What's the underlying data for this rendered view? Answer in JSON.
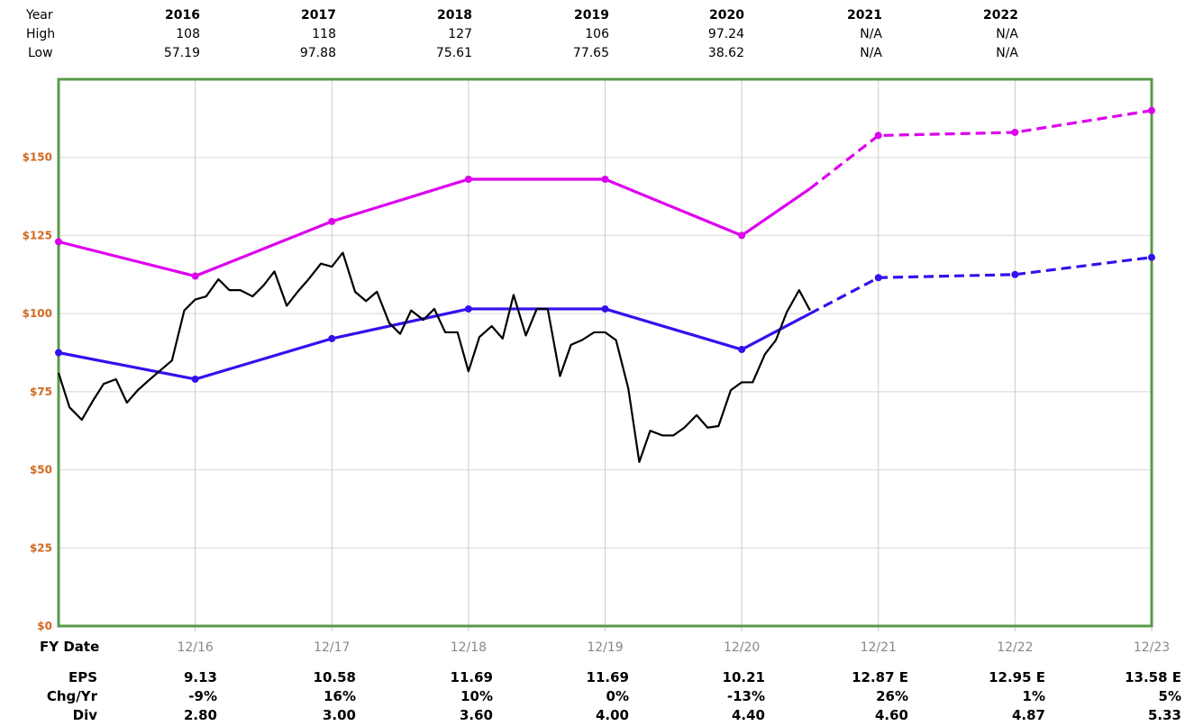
{
  "top_table": {
    "row_labels": [
      "Year",
      "High",
      "Low"
    ],
    "years": [
      "2016",
      "2017",
      "2018",
      "2019",
      "2020",
      "2021",
      "2022"
    ],
    "high": [
      "108",
      "118",
      "127",
      "106",
      "97.24",
      "N/A",
      "N/A"
    ],
    "low": [
      "57.19",
      "97.88",
      "75.61",
      "77.65",
      "38.62",
      "N/A",
      "N/A"
    ]
  },
  "bottom_table": {
    "fy_label": "FY Date",
    "row_labels": [
      "EPS",
      "Chg/Yr",
      "Div"
    ],
    "eps": [
      "9.13",
      "10.58",
      "11.69",
      "11.69",
      "10.21",
      "12.87 E",
      "12.95 E",
      "13.58 E"
    ],
    "chg": [
      "-9%",
      "16%",
      "10%",
      "0%",
      "-13%",
      "26%",
      "1%",
      "5%"
    ],
    "div": [
      "2.80",
      "3.00",
      "3.60",
      "4.00",
      "4.40",
      "4.60",
      "4.87",
      "5.33"
    ]
  },
  "chart_data": {
    "type": "line",
    "x_tick_labels": [
      "12/16",
      "12/17",
      "12/18",
      "12/19",
      "12/20",
      "12/21",
      "12/22",
      "12/23"
    ],
    "y_tick_labels": [
      "$0",
      "$25",
      "$50",
      "$75",
      "$100",
      "$125",
      "$150"
    ],
    "ylim": [
      0,
      175
    ],
    "x_range": [
      2015.0,
      2023.0
    ],
    "grid": true,
    "colors": {
      "frame": "#5a9a4a",
      "grid": "#d8d8d8",
      "vgrid": "#cccccc",
      "ytick": "#d2691e",
      "xtick": "#888888",
      "upper": "#dd00ee",
      "lower": "#3311ee",
      "price": "#000000"
    },
    "series": [
      {
        "key": "upper",
        "points": [
          [
            2015.0,
            123
          ],
          [
            2016.0,
            112
          ],
          [
            2017.0,
            129.5
          ],
          [
            2018.0,
            143
          ],
          [
            2019.0,
            143
          ],
          [
            2020.0,
            125
          ],
          [
            2020.5,
            140
          ],
          [
            2021.0,
            157
          ],
          [
            2022.0,
            158
          ],
          [
            2023.0,
            165
          ]
        ],
        "dashed_from": 6,
        "markers": [
          0,
          1,
          2,
          3,
          4,
          5,
          7,
          8,
          9
        ]
      },
      {
        "key": "lower",
        "points": [
          [
            2015.0,
            87.5
          ],
          [
            2016.0,
            79
          ],
          [
            2017.0,
            92
          ],
          [
            2018.0,
            101.5
          ],
          [
            2019.0,
            101.5
          ],
          [
            2020.0,
            88.5
          ],
          [
            2020.5,
            100
          ],
          [
            2021.0,
            111.5
          ],
          [
            2022.0,
            112.5
          ],
          [
            2023.0,
            118
          ]
        ],
        "dashed_from": 6,
        "markers": [
          0,
          1,
          2,
          3,
          4,
          5,
          7,
          8,
          9
        ]
      },
      {
        "key": "price",
        "points": [
          [
            2015.0,
            81
          ],
          [
            2015.08,
            70
          ],
          [
            2015.17,
            66
          ],
          [
            2015.25,
            72
          ],
          [
            2015.33,
            77.5
          ],
          [
            2015.42,
            79
          ],
          [
            2015.5,
            71.5
          ],
          [
            2015.58,
            75.5
          ],
          [
            2015.67,
            79
          ],
          [
            2015.75,
            82
          ],
          [
            2015.83,
            85
          ],
          [
            2015.92,
            101
          ],
          [
            2016.0,
            104.5
          ],
          [
            2016.08,
            105.5
          ],
          [
            2016.17,
            111
          ],
          [
            2016.25,
            107.5
          ],
          [
            2016.33,
            107.5
          ],
          [
            2016.42,
            105.5
          ],
          [
            2016.5,
            109
          ],
          [
            2016.58,
            113.5
          ],
          [
            2016.67,
            102.5
          ],
          [
            2016.75,
            107
          ],
          [
            2016.83,
            111
          ],
          [
            2016.92,
            116
          ],
          [
            2017.0,
            115
          ],
          [
            2017.08,
            119.5
          ],
          [
            2017.17,
            107
          ],
          [
            2017.25,
            104
          ],
          [
            2017.33,
            107
          ],
          [
            2017.42,
            97
          ],
          [
            2017.5,
            93.5
          ],
          [
            2017.58,
            101
          ],
          [
            2017.67,
            98
          ],
          [
            2017.75,
            101.5
          ],
          [
            2017.83,
            94
          ],
          [
            2017.92,
            94
          ],
          [
            2018.0,
            81.5
          ],
          [
            2018.08,
            92.5
          ],
          [
            2018.17,
            96
          ],
          [
            2018.25,
            92
          ],
          [
            2018.33,
            106
          ],
          [
            2018.42,
            93
          ],
          [
            2018.5,
            101.5
          ],
          [
            2018.58,
            101.5
          ],
          [
            2018.67,
            80
          ],
          [
            2018.75,
            90
          ],
          [
            2018.83,
            91.5
          ],
          [
            2018.92,
            94
          ],
          [
            2019.0,
            94
          ],
          [
            2019.08,
            91.5
          ],
          [
            2019.17,
            76
          ],
          [
            2019.25,
            52.5
          ],
          [
            2019.33,
            62.5
          ],
          [
            2019.42,
            61
          ],
          [
            2019.5,
            61
          ],
          [
            2019.58,
            63.5
          ],
          [
            2019.67,
            67.5
          ],
          [
            2019.75,
            63.5
          ],
          [
            2019.83,
            64
          ],
          [
            2019.92,
            75.5
          ],
          [
            2020.0,
            78
          ],
          [
            2020.08,
            78
          ],
          [
            2020.17,
            87
          ],
          [
            2020.25,
            91.5
          ],
          [
            2020.33,
            100.5
          ],
          [
            2020.42,
            107.5
          ],
          [
            2020.5,
            101
          ]
        ]
      }
    ]
  }
}
